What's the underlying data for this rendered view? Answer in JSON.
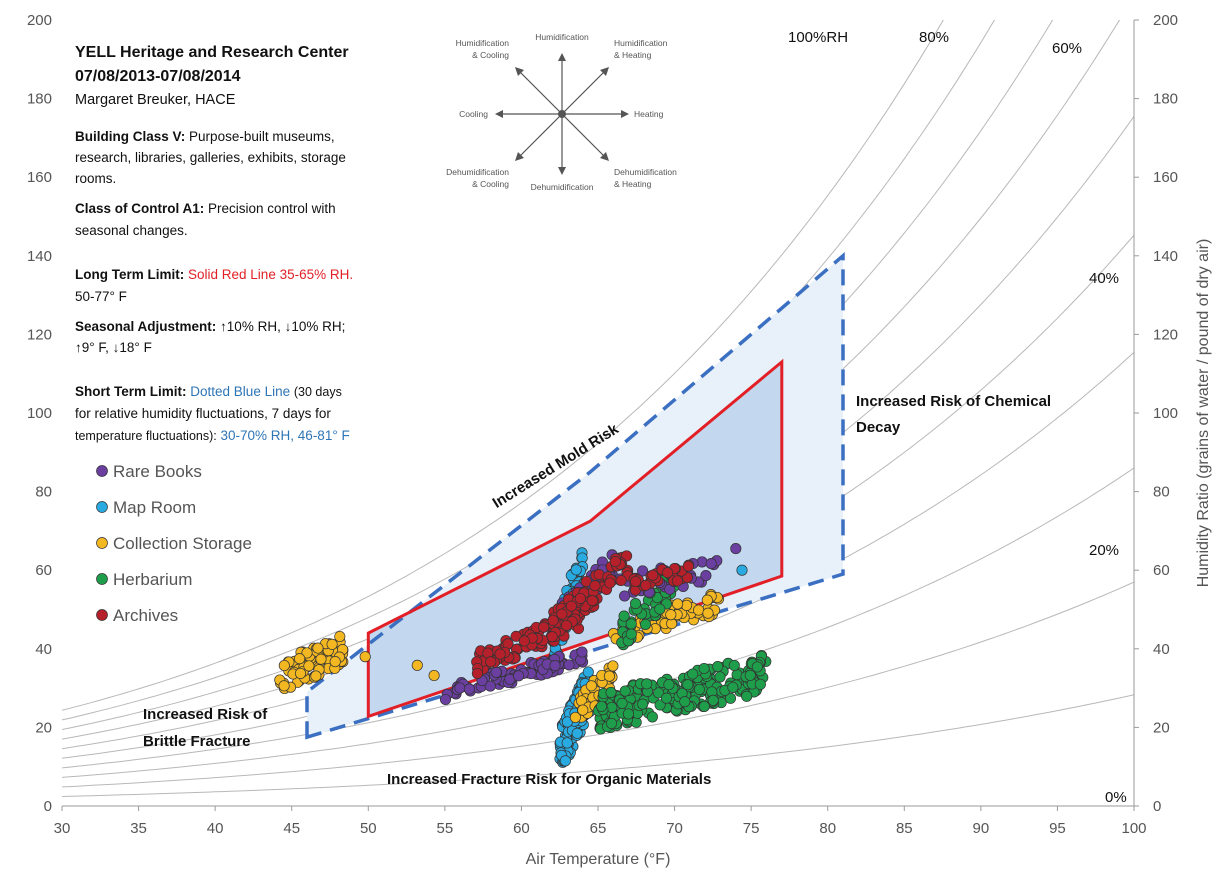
{
  "chart_data": {
    "type": "scatter",
    "title": "YELL Heritage and Research Center",
    "date_range": "07/08/2013-07/08/2014",
    "author": "Margaret Breuker, HACE",
    "xlabel": "Air Temperature (°F)",
    "ylabel": "Humidity Ratio (grains of water / pound of dry air)",
    "xlim": [
      30,
      100
    ],
    "ylim": [
      0,
      200
    ],
    "x_ticks": [
      "30",
      "35",
      "40",
      "45",
      "50",
      "55",
      "60",
      "65",
      "70",
      "75",
      "80",
      "85",
      "90",
      "95",
      "100"
    ],
    "y_ticks": [
      "0",
      "20",
      "40",
      "60",
      "80",
      "100",
      "120",
      "140",
      "160",
      "180",
      "200"
    ],
    "grid": false,
    "legend_position": "left",
    "rh_curves": [
      {
        "label": "100%RH",
        "rh": 100
      },
      {
        "label": "",
        "rh": 90
      },
      {
        "label": "80%",
        "rh": 80
      },
      {
        "label": "",
        "rh": 70
      },
      {
        "label": "60%",
        "rh": 60
      },
      {
        "label": "",
        "rh": 50
      },
      {
        "label": "40%",
        "rh": 40
      },
      {
        "label": "",
        "rh": 30
      },
      {
        "label": "20%",
        "rh": 20
      },
      {
        "label": "",
        "rh": 10
      },
      {
        "label": "0%",
        "rh": 0
      }
    ],
    "long_term_limit": {
      "color": "#e21f26",
      "rh_range": [
        35,
        65
      ],
      "temp_range": [
        50,
        77
      ],
      "points": [
        [
          50,
          22.8
        ],
        [
          50,
          44
        ],
        [
          64.5,
          72.5
        ],
        [
          77,
          113
        ],
        [
          77,
          58.5
        ]
      ]
    },
    "short_term_limit": {
      "color": "#3a6fc1",
      "rh_range": [
        30,
        70
      ],
      "temp_range": [
        46,
        81
      ],
      "points": [
        [
          46,
          17.5
        ],
        [
          46,
          29
        ],
        [
          64.5,
          85
        ],
        [
          81,
          140
        ],
        [
          81,
          59
        ]
      ]
    },
    "annotations": [
      {
        "text": "Increased Mold Risk",
        "x": 60,
        "y": 71
      },
      {
        "text": "Increased Risk of Chemical",
        "x": 86.8,
        "y": 100
      },
      {
        "text": "Decay",
        "x": 82.5,
        "y": 92
      },
      {
        "text": "Increased Risk of",
        "x": 42.5,
        "y": 22
      },
      {
        "text": "Brittle Fracture",
        "x": 42.5,
        "y": 14.5
      },
      {
        "text": "Increased Fracture Risk for Organic Materials",
        "x": 63.5,
        "y": 6.5
      }
    ],
    "series": [
      {
        "name": "Rare Books",
        "color": "#6a3fa0",
        "clusters": [
          {
            "x_range": [
              55,
              64
            ],
            "y_center_at_start": 29,
            "y_center_at_end": 38,
            "spread": 2,
            "count": 90
          },
          {
            "x_range": [
              62,
              66
            ],
            "y_center_at_start": 46,
            "y_center_at_end": 62,
            "spread": 3,
            "count": 60
          },
          {
            "x_range": [
              66,
              73
            ],
            "y_center_at_start": 56,
            "y_center_at_end": 60,
            "spread": 3,
            "count": 30
          }
        ]
      },
      {
        "name": "Map Room",
        "color": "#29abe2",
        "clusters": [
          {
            "x_range": [
              62.5,
              64.5
            ],
            "y_center_at_start": 14,
            "y_center_at_end": 30,
            "spread": 6,
            "count": 140
          },
          {
            "x_range": [
              62,
              64
            ],
            "y_center_at_start": 40,
            "y_center_at_end": 62,
            "spread": 5,
            "count": 50
          }
        ]
      },
      {
        "name": "Collection Storage",
        "color": "#f2b721",
        "clusters": [
          {
            "x_range": [
              44.2,
              48.5
            ],
            "y_center_at_start": 33,
            "y_center_at_end": 40,
            "spread": 4,
            "count": 75
          },
          {
            "x_range": [
              63.5,
              66
            ],
            "y_center_at_start": 24,
            "y_center_at_end": 32,
            "spread": 4,
            "count": 45
          },
          {
            "x_range": [
              66,
              73
            ],
            "y_center_at_start": 44,
            "y_center_at_end": 52,
            "spread": 3,
            "count": 60
          }
        ]
      },
      {
        "name": "Herbarium",
        "color": "#1e9e4a",
        "clusters": [
          {
            "x_range": [
              65,
              76
            ],
            "y_center_at_start": 24,
            "y_center_at_end": 34,
            "spread": 5,
            "count": 230
          },
          {
            "x_range": [
              66.5,
              70
            ],
            "y_center_at_start": 44,
            "y_center_at_end": 57,
            "spread": 4,
            "count": 55
          }
        ]
      },
      {
        "name": "Archives",
        "color": "#b5202b",
        "clusters": [
          {
            "x_range": [
              57,
              64
            ],
            "y_center_at_start": 36,
            "y_center_at_end": 48,
            "spread": 3,
            "count": 90
          },
          {
            "x_range": [
              62,
              67
            ],
            "y_center_at_start": 46,
            "y_center_at_end": 62,
            "spread": 4,
            "count": 80
          },
          {
            "x_range": [
              67,
              71
            ],
            "y_center_at_start": 56,
            "y_center_at_end": 60,
            "spread": 2,
            "count": 30
          }
        ]
      }
    ],
    "reference_series": [
      {
        "name": "",
        "color": "#f2b721",
        "points": [
          [
            53.2,
            35.8
          ],
          [
            54.3,
            33.2
          ],
          [
            49.8,
            38.0
          ]
        ]
      },
      {
        "name": "",
        "color": "#6a3fa0",
        "points": [
          [
            74,
            65.5
          ]
        ]
      },
      {
        "name": "",
        "color": "#29abe2",
        "points": [
          [
            74.4,
            60
          ]
        ]
      }
    ]
  },
  "info_panel": {
    "title_line1": "YELL Heritage and Research Center",
    "title_line2": "07/08/2013-07/08/2014",
    "author": "Margaret Breuker, HACE",
    "building_class_label": "Building Class V:",
    "building_class_text1": "Purpose-built museums,",
    "building_class_text2": "research, libraries, galleries, exhibits, storage",
    "building_class_text3": "rooms.",
    "control_label": "Class of Control A1:",
    "control_text1": "Precision control with",
    "control_text2": "seasonal changes.",
    "long_term_label": "Long Term Limit:",
    "long_term_text1": "Solid Red Line 35-65% RH.",
    "long_term_text2": "50-77° F",
    "seasonal_label": "Seasonal Adjustment:",
    "seasonal_text1": "↑10% RH, ↓10% RH;",
    "seasonal_text2": "↑9° F, ↓18° F",
    "short_term_label": "Short Term Limit:",
    "short_term_blue": "Dotted Blue Line",
    "short_term_text1": "(30 days",
    "short_term_text2": "for relative humidity fluctuations, 7 days for",
    "short_term_text3": "temperature fluctuations):",
    "short_term_blue2": "30-70% RH, 46-81° F"
  },
  "compass": {
    "n": "Humidification",
    "ne1": "Humidification",
    "ne2": "& Heating",
    "e": "Heating",
    "se1": "Dehumidification",
    "se2": "& Heating",
    "s": "Dehumidification",
    "sw1": "Dehumidification",
    "sw2": "& Cooling",
    "w": "Cooling",
    "nw1": "Humidification",
    "nw2": "& Cooling"
  },
  "colors": {
    "long_term_red": "#e21f26",
    "short_term_blue": "#3a6fc1",
    "info_blue": "#2e75b6",
    "curve_gray": "#b8b8b8"
  }
}
